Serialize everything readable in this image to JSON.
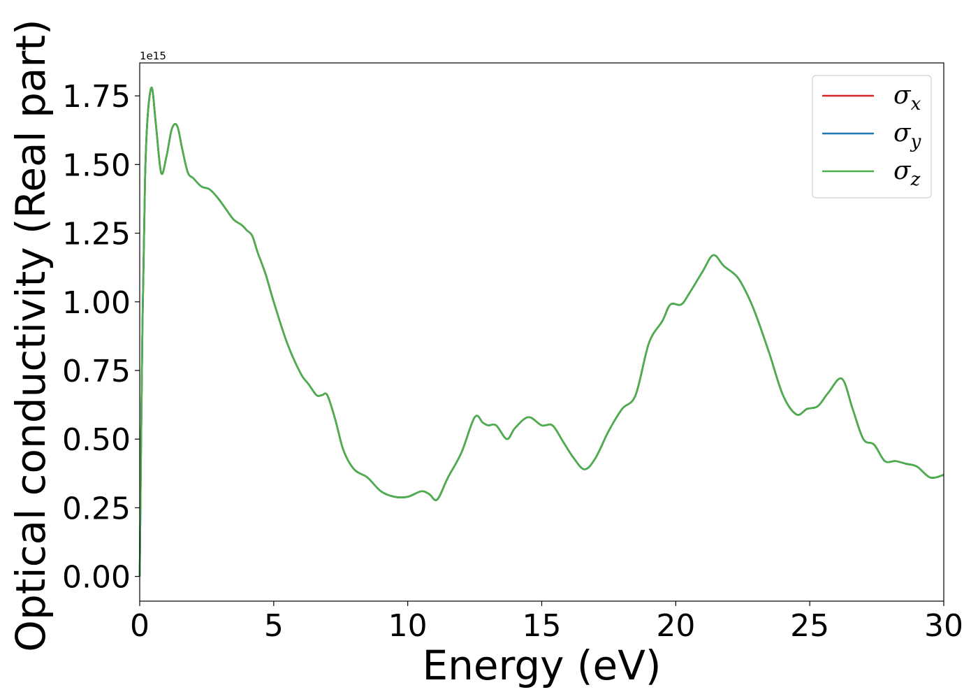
{
  "chart_data": {
    "type": "line",
    "xlabel": "Energy (eV)",
    "ylabel": "Optical conductivity (Real part)",
    "y_offset_label": "1e15",
    "xlim": [
      0,
      30
    ],
    "ylim": [
      -0.09,
      1.87
    ],
    "x_ticks": [
      0,
      5,
      10,
      15,
      20,
      25,
      30
    ],
    "x_tick_labels": [
      "0",
      "5",
      "10",
      "15",
      "20",
      "25",
      "30"
    ],
    "y_ticks": [
      0,
      0.25,
      0.5,
      0.75,
      1.0,
      1.25,
      1.5,
      1.75
    ],
    "y_tick_labels": [
      "0.00",
      "0.25",
      "0.50",
      "0.75",
      "1.00",
      "1.25",
      "1.50",
      "1.75"
    ],
    "grid": false,
    "legend_position": "top-right",
    "x": [
      0,
      0.1,
      0.2,
      0.3,
      0.45,
      0.6,
      0.8,
      1.0,
      1.2,
      1.4,
      1.6,
      1.8,
      2.0,
      2.3,
      2.6,
      2.9,
      3.2,
      3.5,
      3.8,
      4.0,
      4.2,
      4.4,
      4.7,
      5.0,
      5.5,
      6.0,
      6.3,
      6.6,
      6.8,
      7.0,
      7.3,
      7.6,
      8.0,
      8.5,
      9.0,
      9.5,
      10.0,
      10.5,
      10.8,
      11.1,
      11.5,
      12.0,
      12.5,
      12.8,
      13.0,
      13.3,
      13.7,
      14.0,
      14.5,
      15.0,
      15.4,
      15.8,
      16.2,
      16.6,
      17.0,
      17.5,
      18.0,
      18.5,
      19.0,
      19.5,
      19.8,
      20.2,
      20.5,
      21.0,
      21.4,
      21.8,
      22.3,
      22.7,
      23.0,
      23.5,
      24.0,
      24.5,
      24.9,
      25.3,
      25.7,
      26.2,
      26.6,
      27.0,
      27.4,
      27.8,
      28.2,
      28.6,
      29.0,
      29.5,
      30.0
    ],
    "y_values": [
      0,
      0.9,
      1.45,
      1.68,
      1.78,
      1.65,
      1.47,
      1.53,
      1.63,
      1.64,
      1.55,
      1.47,
      1.45,
      1.42,
      1.41,
      1.38,
      1.34,
      1.3,
      1.28,
      1.26,
      1.24,
      1.18,
      1.1,
      1.0,
      0.85,
      0.74,
      0.7,
      0.66,
      0.66,
      0.66,
      0.57,
      0.46,
      0.39,
      0.36,
      0.31,
      0.29,
      0.29,
      0.31,
      0.3,
      0.28,
      0.36,
      0.45,
      0.58,
      0.56,
      0.55,
      0.55,
      0.5,
      0.54,
      0.58,
      0.55,
      0.55,
      0.49,
      0.43,
      0.39,
      0.43,
      0.53,
      0.61,
      0.66,
      0.85,
      0.93,
      0.99,
      0.99,
      1.03,
      1.11,
      1.17,
      1.13,
      1.09,
      1.02,
      0.95,
      0.81,
      0.66,
      0.59,
      0.61,
      0.62,
      0.67,
      0.72,
      0.61,
      0.5,
      0.48,
      0.42,
      0.42,
      0.41,
      0.4,
      0.36,
      0.37
    ],
    "series": [
      {
        "name": "σx",
        "base": "σ",
        "sub": "x",
        "color": "#d62728"
      },
      {
        "name": "σy",
        "base": "σ",
        "sub": "y",
        "color": "#1f77b4"
      },
      {
        "name": "σz",
        "base": "σ",
        "sub": "z",
        "color": "#4daf4a"
      }
    ]
  }
}
